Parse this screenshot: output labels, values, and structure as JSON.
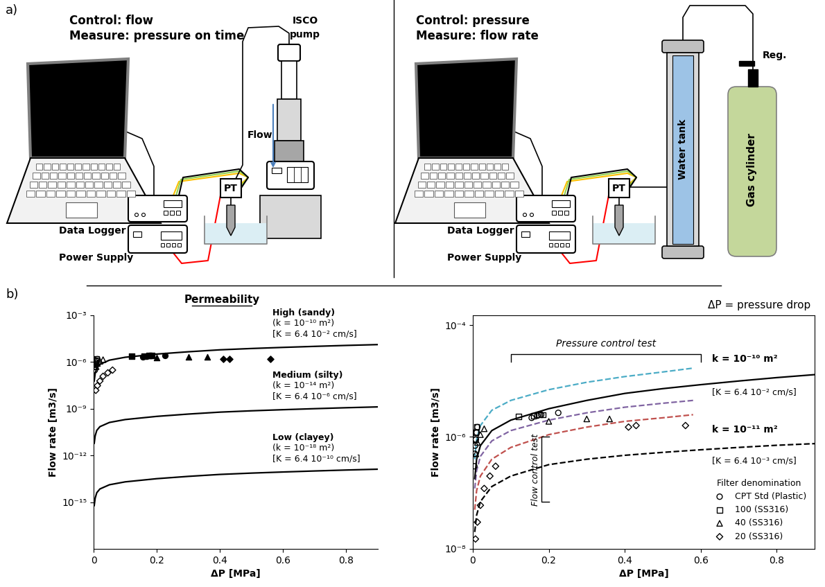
{
  "panel_a": {
    "label": "a)",
    "left": {
      "control": "Control: flow",
      "measure": "Measure: pressure on time",
      "pump": [
        "ISCO",
        "pump"
      ],
      "flow": "Flow",
      "logger": "Data Logger",
      "power": "Power Supply",
      "sensor": "PT"
    },
    "right": {
      "control": "Control: pressure",
      "measure": "Measure: flow rate",
      "tank": "Water tank",
      "cylinder": "Gas cylinder",
      "regulator": "Reg.",
      "logger": "Data Logger",
      "power": "Power Supply",
      "sensor": "PT"
    }
  },
  "panel_b": {
    "label": "b)",
    "heading": "Permeability",
    "note": "ΔP = pressure drop"
  },
  "chart_data": [
    {
      "type": "line",
      "xlabel": "ΔP [MPa]",
      "ylabel": "Flow rate [m3/s]",
      "log": "y",
      "xlim": [
        0,
        0.9
      ],
      "ylim": [
        1e-18,
        0.001
      ],
      "xticks": [
        0,
        0.2,
        0.4,
        0.6,
        0.8
      ],
      "yticks": [
        {
          "value": 1e-15,
          "label": "10⁻¹⁵"
        },
        {
          "value": 1e-12,
          "label": "10⁻¹²"
        },
        {
          "value": 1e-09,
          "label": "10⁻⁹"
        },
        {
          "value": 1e-06,
          "label": "10⁻⁶"
        },
        {
          "value": 0.001,
          "label": "10⁻³"
        }
      ],
      "annotations": [
        [
          "High (sandy)",
          "(k = 10⁻¹⁰ m²)",
          "[K = 6.4 10⁻² cm/s]"
        ],
        [
          "Medium (silty)",
          "(k = 10⁻¹⁴ m²)",
          "[K = 6.4 10⁻⁶ cm/s]"
        ],
        [
          "Low (clayey)",
          "(k = 10⁻¹⁸ m²)",
          "[K = 6.4 10⁻¹⁰ cm/s]"
        ]
      ],
      "series": [
        {
          "type": "line",
          "color": "#000000",
          "line_style": "solid",
          "x": [
            0.002,
            0.005,
            0.01,
            0.02,
            0.05,
            0.1,
            0.2,
            0.3,
            0.4,
            0.5,
            0.6,
            0.7,
            0.8,
            0.9
          ],
          "values": [
            6e-08,
            1.8e-07,
            4e-07,
            7e-07,
            1.3e-06,
            2e-06,
            3.2e-06,
            4.5e-06,
            6e-06,
            7.3e-06,
            8.6e-06,
            1e-05,
            1.15e-05,
            1.3e-05
          ]
        },
        {
          "type": "line",
          "color": "#000000",
          "line_style": "solid",
          "x": [
            0.002,
            0.005,
            0.01,
            0.02,
            0.05,
            0.1,
            0.2,
            0.3,
            0.4,
            0.5,
            0.6,
            0.7,
            0.8,
            0.9
          ],
          "values": [
            6e-12,
            1.8e-11,
            4e-11,
            7e-11,
            1.3e-10,
            2e-10,
            3.2e-10,
            4.5e-10,
            6e-10,
            7.3e-10,
            8.6e-10,
            1e-09,
            1.15e-09,
            1.3e-09
          ]
        },
        {
          "type": "line",
          "color": "#000000",
          "line_style": "solid",
          "x": [
            0.002,
            0.005,
            0.01,
            0.02,
            0.05,
            0.1,
            0.2,
            0.3,
            0.4,
            0.5,
            0.6,
            0.7,
            0.8,
            0.9
          ],
          "values": [
            6e-16,
            1.8e-15,
            4e-15,
            7e-15,
            1.3e-14,
            2e-14,
            3.2e-14,
            4.5e-14,
            6e-14,
            7.3e-14,
            8.6e-14,
            1e-13,
            1.15e-13,
            1.3e-13
          ]
        },
        {
          "type": "scatter",
          "marker": "circle",
          "color": "none",
          "x": [
            0.004,
            0.005,
            0.006,
            0.008,
            0.01,
            0.012
          ],
          "values": [
            3e-07,
            5e-07,
            7e-07,
            9e-07,
            1.2e-06,
            1.5e-06
          ]
        },
        {
          "type": "scatter",
          "marker": "circle",
          "color": "#000000",
          "x": [
            0.155,
            0.17,
            0.18,
            0.225
          ],
          "values": [
            2.2e-06,
            2.4e-06,
            2.5e-06,
            2.7e-06
          ]
        },
        {
          "type": "scatter",
          "marker": "square",
          "color": "none",
          "x": [
            0.005,
            0.008,
            0.01
          ],
          "values": [
            9e-07,
            1.2e-06,
            1.5e-06
          ]
        },
        {
          "type": "scatter",
          "marker": "square",
          "color": "#000000",
          "x": [
            0.12,
            0.16,
            0.175,
            0.185
          ],
          "values": [
            2.3e-06,
            2.4e-06,
            2.5e-06,
            2.5e-06
          ]
        },
        {
          "type": "scatter",
          "marker": "triangle",
          "color": "none",
          "x": [
            0.008,
            0.012,
            0.02,
            0.03
          ],
          "values": [
            5e-07,
            8e-07,
            1.1e-06,
            1.4e-06
          ]
        },
        {
          "type": "scatter",
          "marker": "triangle",
          "color": "#000000",
          "x": [
            0.2,
            0.3,
            0.36
          ],
          "values": [
            1.9e-06,
            2.1e-06,
            2.1e-06
          ]
        },
        {
          "type": "scatter",
          "marker": "diamond",
          "color": "none",
          "x": [
            0.007,
            0.012,
            0.02,
            0.03,
            0.045,
            0.06
          ],
          "values": [
            1.5e-08,
            3e-08,
            6e-08,
            1.2e-07,
            2e-07,
            3e-07
          ]
        },
        {
          "type": "scatter",
          "marker": "diamond",
          "color": "#000000",
          "x": [
            0.41,
            0.43,
            0.56
          ],
          "values": [
            1.5e-06,
            1.6e-06,
            1.6e-06
          ]
        }
      ]
    },
    {
      "type": "scatter",
      "xlabel": "ΔP [MPa]",
      "ylabel": "Flow rate [m3/s]",
      "log": "y",
      "xlim": [
        0,
        0.9
      ],
      "ylim": [
        1e-08,
        0.00015
      ],
      "xticks": [
        0,
        0.2,
        0.4,
        0.6,
        0.8
      ],
      "yticks": [
        {
          "value": 1e-08,
          "label": "10⁻⁸"
        },
        {
          "value": 1e-06,
          "label": "10⁻⁶"
        },
        {
          "value": 0.0001,
          "label": "10⁻⁴"
        }
      ],
      "legend": "lower right",
      "legend_title": "Filter denomination",
      "annotations": {
        "pressure_control": "Pressure control test",
        "flow_control": "Flow control test",
        "curves": [
          [
            "k = 10⁻¹⁰ m²",
            "[K = 6.4 10⁻² cm/s]"
          ],
          [
            "k = 10⁻¹¹ m²",
            "[K = 6.4 10⁻³ cm/s]"
          ]
        ]
      },
      "series": [
        {
          "type": "line",
          "color": "#4bacc6",
          "line_style": "dashed",
          "x": [
            0.005,
            0.01,
            0.02,
            0.05,
            0.1,
            0.2,
            0.3,
            0.4,
            0.5,
            0.58
          ],
          "values": [
            4e-07,
            9e-07,
            1.6e-06,
            3e-06,
            4.5e-06,
            7e-06,
            9.5e-06,
            1.2e-05,
            1.45e-05,
            1.7e-05
          ]
        },
        {
          "type": "line",
          "color": "#8064a2",
          "line_style": "dashed",
          "x": [
            0.005,
            0.01,
            0.02,
            0.05,
            0.1,
            0.2,
            0.3,
            0.4,
            0.5,
            0.58
          ],
          "values": [
            1.2e-07,
            2.5e-07,
            4.5e-07,
            8.5e-07,
            1.3e-06,
            2e-06,
            2.7e-06,
            3.4e-06,
            4e-06,
            4.5e-06
          ]
        },
        {
          "type": "line",
          "color": "#c0504d",
          "line_style": "dashed",
          "x": [
            0.005,
            0.01,
            0.02,
            0.05,
            0.1,
            0.2,
            0.3,
            0.4,
            0.5,
            0.58
          ],
          "values": [
            5e-08,
            1.1e-07,
            2e-07,
            4e-07,
            6.5e-07,
            1.1e-06,
            1.5e-06,
            1.9e-06,
            2.2e-06,
            2.5e-06
          ]
        },
        {
          "type": "line",
          "color": "#000000",
          "line_style": "solid",
          "x": [
            0.005,
            0.01,
            0.02,
            0.05,
            0.1,
            0.2,
            0.3,
            0.4,
            0.5,
            0.6,
            0.7,
            0.8,
            0.9
          ],
          "values": [
            1.8e-07,
            4e-07,
            7e-07,
            1.3e-06,
            2e-06,
            3.2e-06,
            4.5e-06,
            6e-06,
            7.3e-06,
            8.6e-06,
            1e-05,
            1.15e-05,
            1.3e-05
          ]
        },
        {
          "type": "line",
          "color": "#000000",
          "line_style": "dashed",
          "x": [
            0.005,
            0.01,
            0.02,
            0.05,
            0.1,
            0.2,
            0.3,
            0.4,
            0.5,
            0.6,
            0.7,
            0.8,
            0.9
          ],
          "values": [
            2e-08,
            4e-08,
            7e-08,
            1.3e-07,
            2e-07,
            3.2e-07,
            4e-07,
            4.7e-07,
            5.3e-07,
            5.9e-07,
            6.5e-07,
            7.1e-07,
            7.6e-07
          ]
        },
        {
          "name": "CPT Std (Plastic)",
          "type": "scatter",
          "marker": "circle",
          "color": "none",
          "x": [
            0.004,
            0.005,
            0.006,
            0.008,
            0.01,
            0.012,
            0.155,
            0.17,
            0.18,
            0.225
          ],
          "values": [
            3e-07,
            5e-07,
            7e-07,
            9e-07,
            1.2e-06,
            1.5e-06,
            2.2e-06,
            2.4e-06,
            2.5e-06,
            2.7e-06
          ]
        },
        {
          "name": "100 (SS316)",
          "type": "scatter",
          "marker": "square",
          "color": "none",
          "x": [
            0.005,
            0.008,
            0.01,
            0.12,
            0.16,
            0.175,
            0.185
          ],
          "values": [
            9e-07,
            1.2e-06,
            1.5e-06,
            2.3e-06,
            2.4e-06,
            2.5e-06,
            2.5e-06
          ]
        },
        {
          "name": "40 (SS316)",
          "type": "scatter",
          "marker": "triangle",
          "color": "none",
          "x": [
            0.008,
            0.012,
            0.02,
            0.03,
            0.2,
            0.3,
            0.36
          ],
          "values": [
            5e-07,
            8e-07,
            1.1e-06,
            1.4e-06,
            1.9e-06,
            2.1e-06,
            2.1e-06
          ]
        },
        {
          "name": "20 (SS316)",
          "type": "scatter",
          "marker": "diamond",
          "color": "none",
          "x": [
            0.007,
            0.012,
            0.02,
            0.03,
            0.045,
            0.06,
            0.41,
            0.43,
            0.56
          ],
          "values": [
            1.5e-08,
            3e-08,
            6e-08,
            1.2e-07,
            2e-07,
            3e-07,
            1.5e-06,
            1.6e-06,
            1.6e-06
          ]
        }
      ]
    }
  ]
}
